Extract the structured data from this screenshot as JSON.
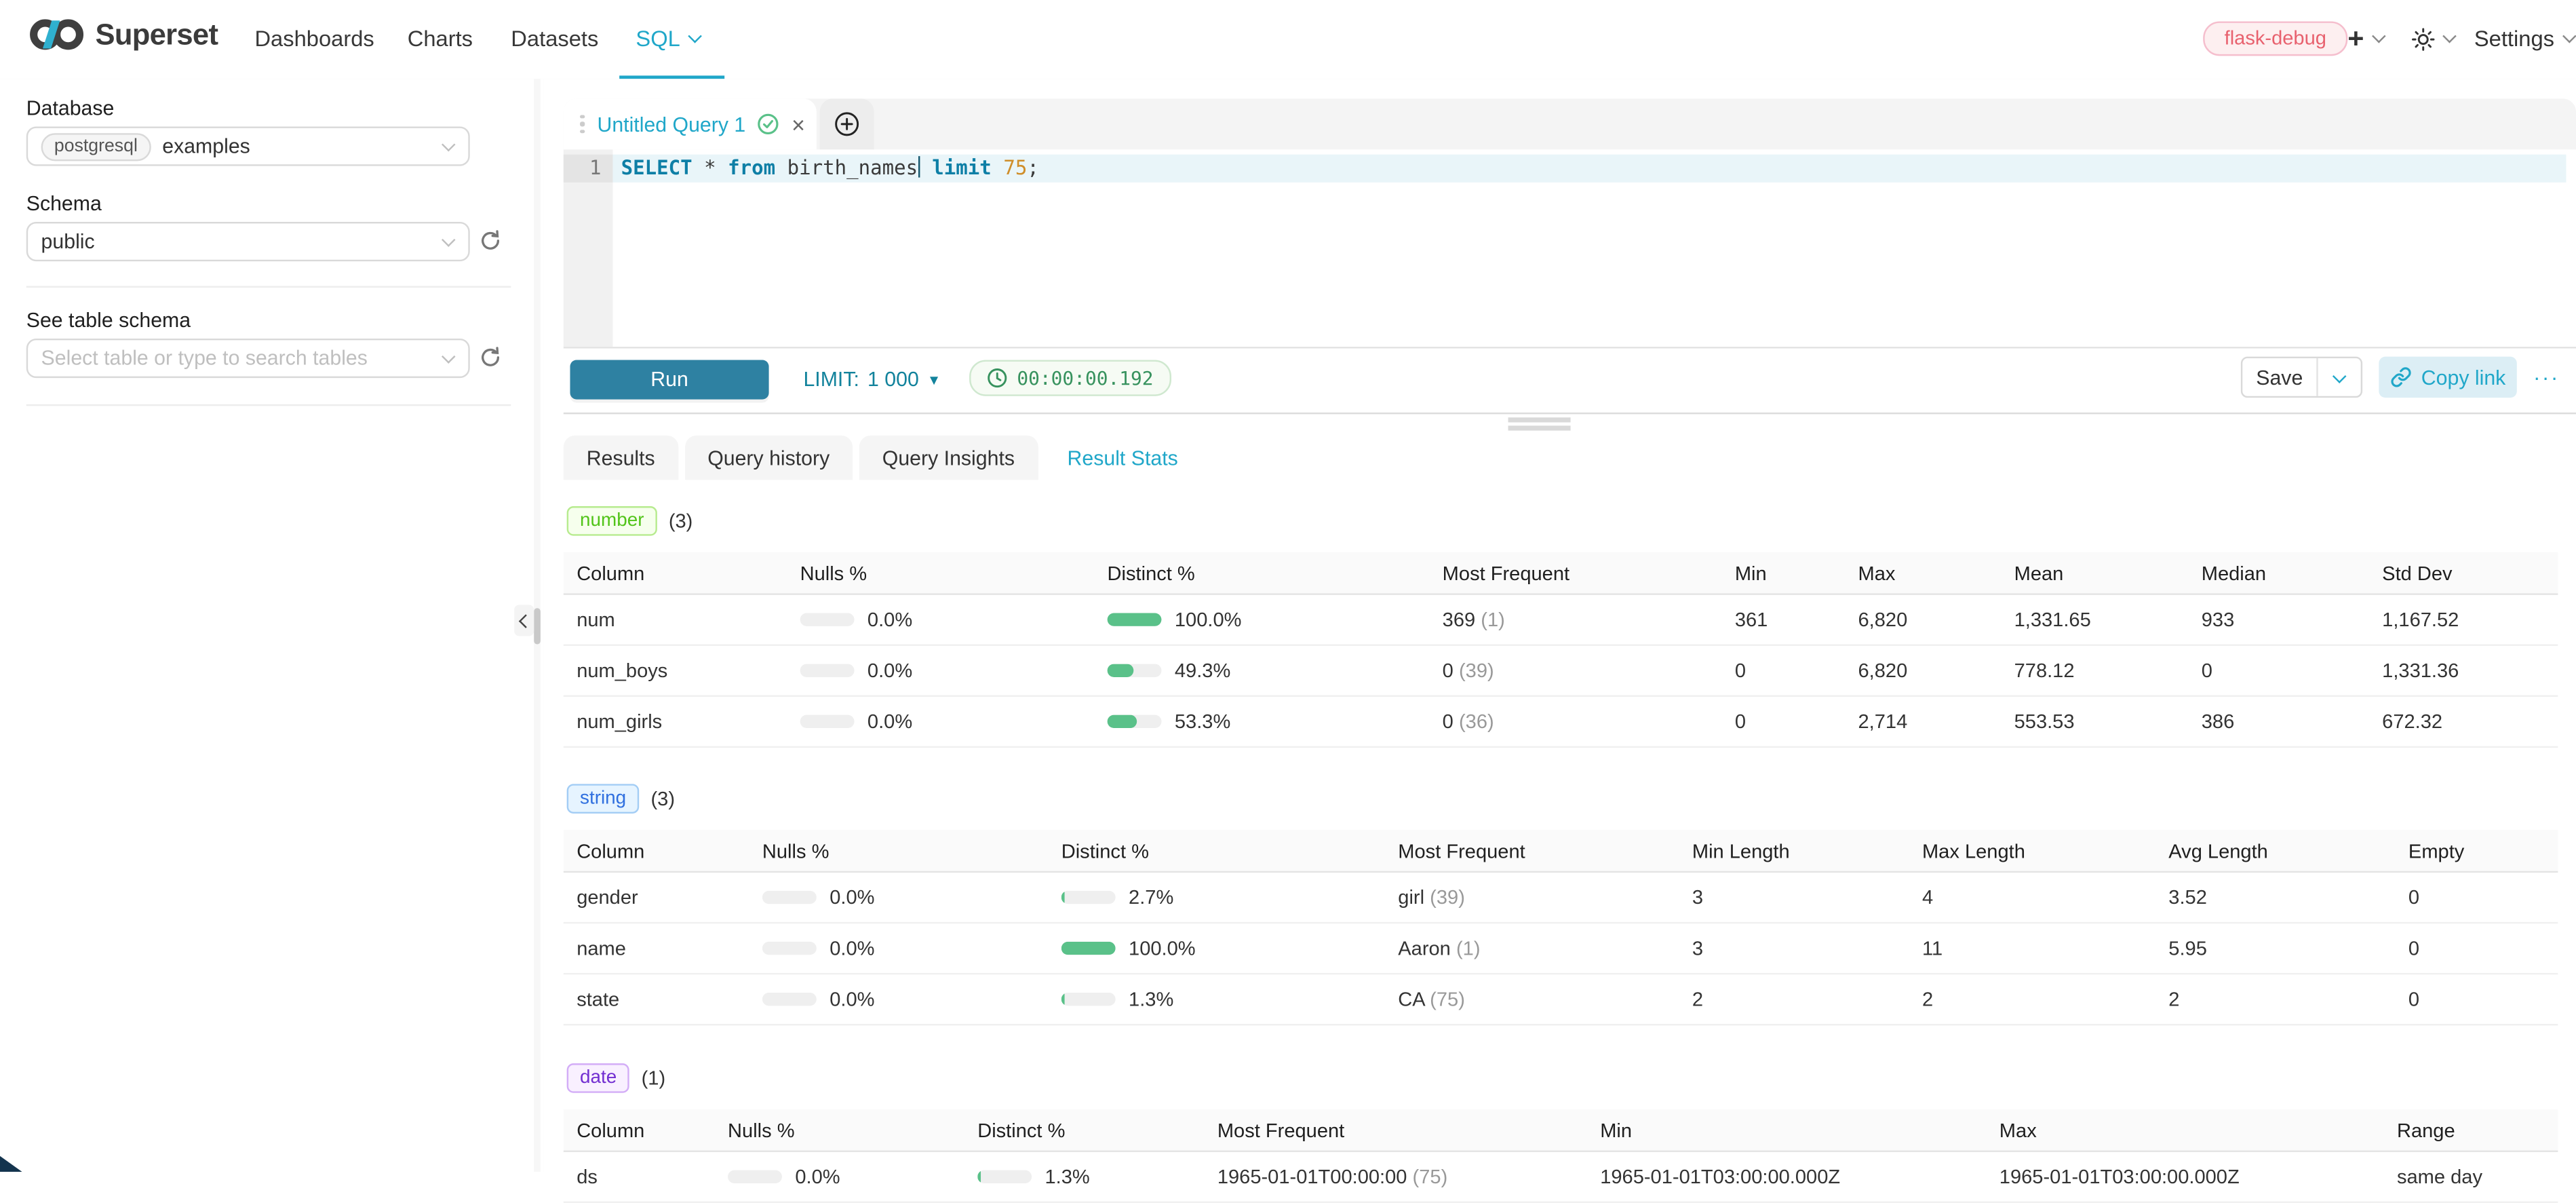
{
  "nav": {
    "brand": "Superset",
    "items": [
      {
        "label": "Dashboards"
      },
      {
        "label": "Charts"
      },
      {
        "label": "Datasets"
      },
      {
        "label": "SQL"
      }
    ],
    "env_badge": "flask-debug",
    "settings": "Settings"
  },
  "sidebar": {
    "database_label": "Database",
    "database_dialect": "postgresql",
    "database_name": "examples",
    "schema_label": "Schema",
    "schema_value": "public",
    "table_label": "See table schema",
    "table_placeholder": "Select table or type to search tables"
  },
  "editor": {
    "tab_title": "Untitled Query 1",
    "line_number": "1",
    "tokens": {
      "kw_select": "SELECT",
      "star": " * ",
      "kw_from": "from",
      "ident_table": " birth_names",
      "kw_limit": " limit",
      "num_limit": " 75",
      "semicolon": ";"
    }
  },
  "toolbar": {
    "run": "Run",
    "limit_label": "LIMIT:",
    "limit_value": "1 000",
    "elapsed": "00:00:00.192",
    "save": "Save",
    "copy_link": "Copy link",
    "more": "···"
  },
  "south": {
    "tabs": [
      {
        "label": "Results"
      },
      {
        "label": "Query history"
      },
      {
        "label": "Query Insights"
      },
      {
        "label": "Result Stats"
      }
    ]
  },
  "stats": {
    "number": {
      "badge": "number",
      "count": "(3)",
      "headers": [
        "Column",
        "Nulls %",
        "Distinct %",
        "Most Frequent",
        "Min",
        "Max",
        "Mean",
        "Median",
        "Std Dev"
      ],
      "rows": [
        {
          "column": "num",
          "nulls": "0.0%",
          "nulls_pct": 0,
          "distinct": "100.0%",
          "distinct_pct": 100,
          "mf": "369",
          "mf_count": "(1)",
          "min": "361",
          "max": "6,820",
          "mean": "1,331.65",
          "median": "933",
          "std": "1,167.52"
        },
        {
          "column": "num_boys",
          "nulls": "0.0%",
          "nulls_pct": 0,
          "distinct": "49.3%",
          "distinct_pct": 49.3,
          "mf": "0",
          "mf_count": "(39)",
          "min": "0",
          "max": "6,820",
          "mean": "778.12",
          "median": "0",
          "std": "1,331.36"
        },
        {
          "column": "num_girls",
          "nulls": "0.0%",
          "nulls_pct": 0,
          "distinct": "53.3%",
          "distinct_pct": 53.3,
          "mf": "0",
          "mf_count": "(36)",
          "min": "0",
          "max": "2,714",
          "mean": "553.53",
          "median": "386",
          "std": "672.32"
        }
      ]
    },
    "string": {
      "badge": "string",
      "count": "(3)",
      "headers": [
        "Column",
        "Nulls %",
        "Distinct %",
        "Most Frequent",
        "Min Length",
        "Max Length",
        "Avg Length",
        "Empty"
      ],
      "rows": [
        {
          "column": "gender",
          "nulls": "0.0%",
          "nulls_pct": 0,
          "distinct": "2.7%",
          "distinct_pct": 2.7,
          "mf": "girl",
          "mf_count": "(39)",
          "min_len": "3",
          "max_len": "4",
          "avg_len": "3.52",
          "empty": "0"
        },
        {
          "column": "name",
          "nulls": "0.0%",
          "nulls_pct": 0,
          "distinct": "100.0%",
          "distinct_pct": 100,
          "mf": "Aaron",
          "mf_count": "(1)",
          "min_len": "3",
          "max_len": "11",
          "avg_len": "5.95",
          "empty": "0"
        },
        {
          "column": "state",
          "nulls": "0.0%",
          "nulls_pct": 0,
          "distinct": "1.3%",
          "distinct_pct": 1.3,
          "mf": "CA",
          "mf_count": "(75)",
          "min_len": "2",
          "max_len": "2",
          "avg_len": "2",
          "empty": "0"
        }
      ]
    },
    "date": {
      "badge": "date",
      "count": "(1)",
      "headers": [
        "Column",
        "Nulls %",
        "Distinct %",
        "Most Frequent",
        "Min",
        "Max",
        "Range"
      ],
      "rows": [
        {
          "column": "ds",
          "nulls": "0.0%",
          "nulls_pct": 0,
          "distinct": "1.3%",
          "distinct_pct": 1.3,
          "mf": "1965-01-01T00:00:00",
          "mf_count": "(75)",
          "min": "1965-01-01T03:00:00.000Z",
          "max": "1965-01-01T03:00:00.000Z",
          "range": "same day"
        }
      ]
    }
  },
  "colors": {
    "primary": "#20a7c9",
    "success_bar": "#5ac189",
    "run_button": "#2e81a2"
  }
}
